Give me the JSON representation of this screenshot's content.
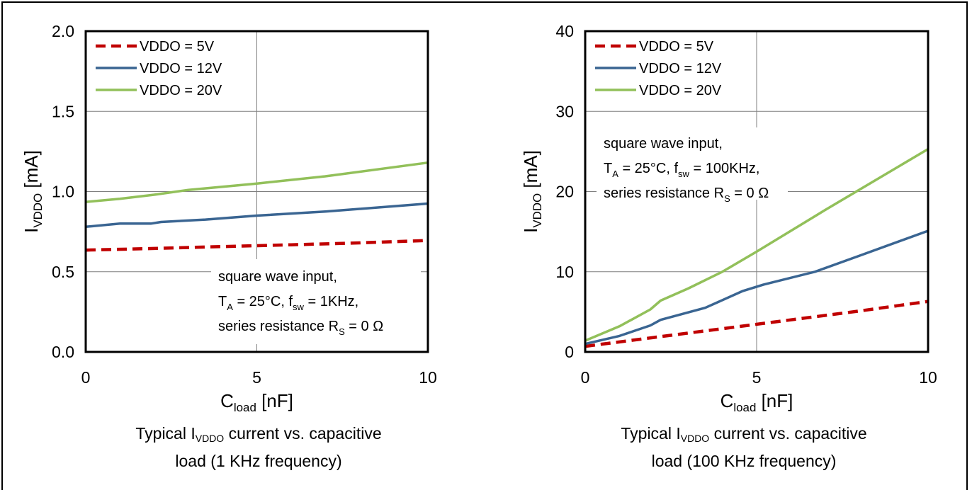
{
  "chart_data": [
    {
      "type": "line",
      "xlabel": "Cload [nF]",
      "ylabel": "IVDDO [mA]",
      "xlim": [
        0,
        10
      ],
      "ylim": [
        0,
        2.0
      ],
      "xticks": [
        "0",
        "5",
        "10"
      ],
      "yticks": [
        "0.0",
        "0.5",
        "1.0",
        "1.5",
        "2.0"
      ],
      "grid": "major",
      "legend": "top-left",
      "series": [
        {
          "name": "VDDO = 5V",
          "color": "#c00000",
          "dash": true,
          "x": [
            0,
            2,
            4,
            6,
            8,
            10
          ],
          "y": [
            0.635,
            0.645,
            0.657,
            0.668,
            0.68,
            0.695
          ]
        },
        {
          "name": "VDDO = 12V",
          "color": "#3a6592",
          "dash": false,
          "x": [
            0,
            1,
            1.9,
            2.2,
            3.5,
            5,
            7,
            10
          ],
          "y": [
            0.78,
            0.8,
            0.8,
            0.81,
            0.825,
            0.85,
            0.875,
            0.925
          ]
        },
        {
          "name": "VDDO = 20V",
          "color": "#92c05a",
          "dash": false,
          "x": [
            0,
            1,
            2,
            3,
            5,
            7,
            10
          ],
          "y": [
            0.935,
            0.955,
            0.98,
            1.01,
            1.05,
            1.095,
            1.18
          ]
        }
      ],
      "annotation": [
        "square wave input,",
        "TA = 25°C, fsw = 1KHz,",
        "series resistance RS = 0 Ω"
      ],
      "caption": [
        "Typical IVDDO current vs. capacitive",
        "load  (1 KHz frequency)"
      ]
    },
    {
      "type": "line",
      "xlabel": "Cload [nF]",
      "ylabel": "IVDDO [mA]",
      "xlim": [
        0,
        10
      ],
      "ylim": [
        0,
        40
      ],
      "xticks": [
        "0",
        "5",
        "10"
      ],
      "yticks": [
        "0",
        "10",
        "20",
        "30",
        "40"
      ],
      "grid": "major",
      "legend": "top-left",
      "series": [
        {
          "name": "VDDO = 5V",
          "color": "#c00000",
          "dash": true,
          "x": [
            0,
            2,
            4,
            6,
            8,
            10
          ],
          "y": [
            0.7,
            1.8,
            2.9,
            4.0,
            5.1,
            6.3
          ]
        },
        {
          "name": "VDDO = 12V",
          "color": "#3a6592",
          "dash": false,
          "x": [
            0,
            1,
            1.9,
            2.2,
            3.5,
            4.6,
            5.2,
            6.7,
            8,
            10
          ],
          "y": [
            1.0,
            2.0,
            3.3,
            4.0,
            5.5,
            7.6,
            8.4,
            10.0,
            12.0,
            15.1
          ]
        },
        {
          "name": "VDDO = 20V",
          "color": "#92c05a",
          "dash": false,
          "x": [
            0,
            1,
            1.9,
            2.2,
            3,
            4,
            5,
            7,
            10
          ],
          "y": [
            1.4,
            3.2,
            5.3,
            6.4,
            7.9,
            10.0,
            12.5,
            17.7,
            25.3
          ]
        }
      ],
      "annotation": [
        "square wave input,",
        "TA = 25°C, fsw = 100KHz,",
        "series resistance RS = 0 Ω"
      ],
      "caption": [
        "Typical IVDDO current vs. capacitive",
        "load  (100 KHz frequency)"
      ]
    }
  ]
}
